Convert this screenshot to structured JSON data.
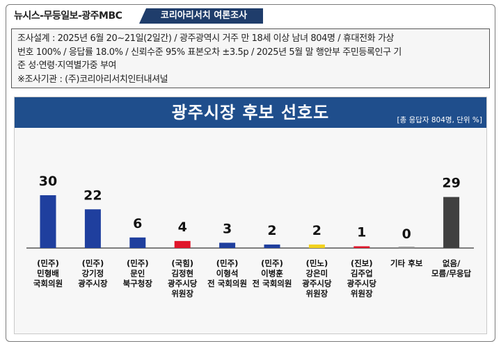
{
  "header": {
    "sources": "뉴시스-무등일보-광주MBC",
    "pollster": "코리아리서치  여론조사"
  },
  "survey_info": {
    "line1": "조사설계 : 2025년 6월 20~21일(2일간) / 광주광역시 거주 만 18세 이상 남녀 804명 / 휴대전화 가상",
    "line2": "번호 100% / 응답률 18.0% / 신뢰수준 95% 표본오차 ±3.5p / 2025년 5월 말 행안부 주민등록인구 기",
    "line3": "준 성·연령·지역별가중 부여",
    "line4": "※조사기관 : (주)코리아리서치인터내셔널"
  },
  "chart_data": {
    "type": "bar",
    "title": "광주시장 후보 선호도",
    "subtitle": "[총 응답자 804명, 단위 %]",
    "categories": [
      [
        "(민주)",
        "민형배",
        "국회의원"
      ],
      [
        "(민주)",
        "강기정",
        "광주시장"
      ],
      [
        "(민주)",
        "문인",
        "북구청장"
      ],
      [
        "(국힘)",
        "김정현",
        "광주시당",
        "위원장"
      ],
      [
        "(민주)",
        "이형석",
        "전 국회의원"
      ],
      [
        "(민주)",
        "이병훈",
        "전 국회의원"
      ],
      [
        "(민노)",
        "강은미",
        "광주시당",
        "위원장"
      ],
      [
        "(진보)",
        "김주업",
        "광주시당",
        "위원장"
      ],
      [
        "기타 후보"
      ],
      [
        "없음/",
        "모름/무응답"
      ]
    ],
    "values": [
      30,
      22,
      6,
      4,
      3,
      2,
      2,
      1,
      0,
      29
    ],
    "value_labels": [
      "30",
      "22",
      "6",
      "4",
      "3",
      "2",
      "2",
      "1",
      "0",
      "29"
    ],
    "bar_colors": [
      "#1f3f9e",
      "#1f3f9e",
      "#1f3f9e",
      "#e0152a",
      "#1f3f9e",
      "#1f3f9e",
      "#f2d21e",
      "#e0152a",
      "#9a9a9a",
      "#404040"
    ],
    "ylim": [
      0,
      30
    ],
    "grid": false,
    "legend": "none"
  }
}
